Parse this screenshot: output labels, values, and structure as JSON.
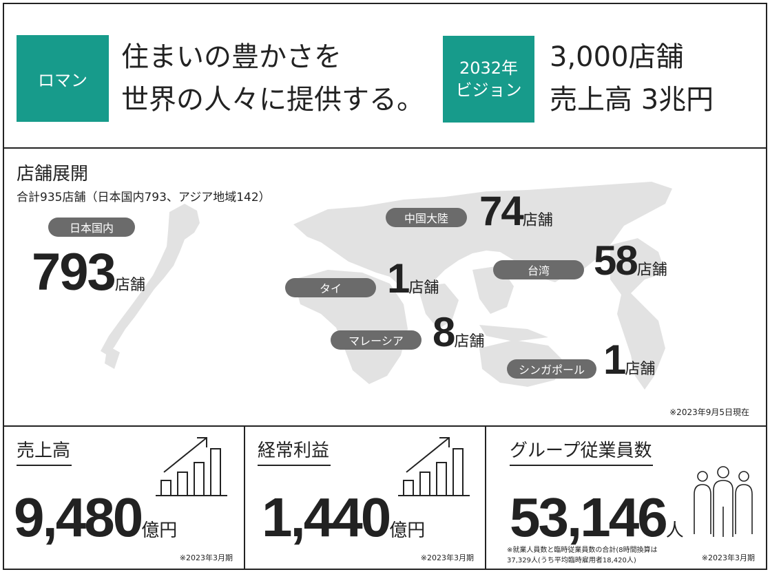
{
  "banner": {
    "roman_label": "ロマン",
    "roman_lines": [
      "住まいの豊かさを",
      "世界の人々に提供する。"
    ],
    "vision_label_lines": [
      "2032年",
      "ビジョン"
    ],
    "vision_lines": [
      "3,000店舗",
      "売上高 3兆円"
    ]
  },
  "stores": {
    "title": "店舗展開",
    "subtitle": "合計935店舗（日本国内793、アジア地域142）",
    "note": "※2023年9月5日現在",
    "unit": "店舗",
    "regions": [
      {
        "label": "日本国内",
        "count": "793"
      },
      {
        "label": "中国大陸",
        "count": "74"
      },
      {
        "label": "台湾",
        "count": "58"
      },
      {
        "label": "タイ",
        "count": "1"
      },
      {
        "label": "マレーシア",
        "count": "8"
      },
      {
        "label": "シンガポール",
        "count": "1"
      }
    ]
  },
  "kpis": {
    "sales": {
      "title": "売上高",
      "value": "9,480",
      "unit": "億円",
      "note": "※2023年3月期",
      "icon": "bar-chart-growth-icon"
    },
    "profit": {
      "title": "経常利益",
      "value": "1,440",
      "unit": "億円",
      "note": "※2023年3月期",
      "icon": "bar-chart-growth-icon"
    },
    "employees": {
      "title": "グループ従業員数",
      "value": "53,146",
      "unit": "人",
      "note": "※2023年3月期",
      "icon": "people-group-icon",
      "footnote": "※就業人員数と臨時従業員数の合計(8時間換算は37,329人(うち平均臨時雇用者18,420人)"
    }
  },
  "colors": {
    "accent": "#179b8b",
    "pill": "#6b6b6b",
    "map": "#e2e2e2"
  }
}
